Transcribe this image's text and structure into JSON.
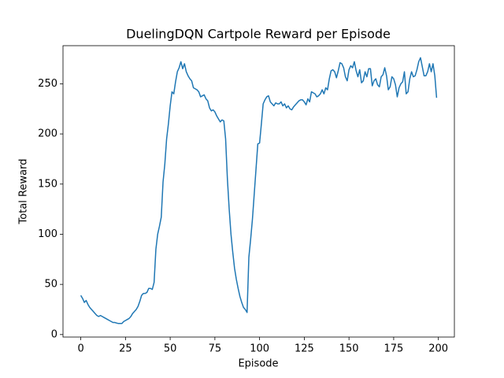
{
  "chart_data": {
    "type": "line",
    "title": "DuelingDQN Cartpole Reward per Episode",
    "x_label": "Episode",
    "y_label": "Total Reward",
    "x": [
      0,
      1,
      2,
      3,
      4,
      5,
      6,
      7,
      8,
      9,
      10,
      11,
      12,
      13,
      14,
      15,
      16,
      17,
      18,
      19,
      20,
      21,
      22,
      23,
      24,
      25,
      26,
      27,
      28,
      29,
      30,
      31,
      32,
      33,
      34,
      35,
      36,
      37,
      38,
      39,
      40,
      41,
      42,
      43,
      44,
      45,
      46,
      47,
      48,
      49,
      50,
      51,
      52,
      53,
      54,
      55,
      56,
      57,
      58,
      59,
      60,
      61,
      62,
      63,
      64,
      65,
      66,
      67,
      68,
      69,
      70,
      71,
      72,
      73,
      74,
      75,
      76,
      77,
      78,
      79,
      80,
      81,
      82,
      83,
      84,
      85,
      86,
      87,
      88,
      89,
      90,
      91,
      92,
      93,
      94,
      95,
      96,
      97,
      98,
      99,
      100,
      101,
      102,
      103,
      104,
      105,
      106,
      107,
      108,
      109,
      110,
      111,
      112,
      113,
      114,
      115,
      116,
      117,
      118,
      119,
      120,
      121,
      122,
      123,
      124,
      125,
      126,
      127,
      128,
      129,
      130,
      131,
      132,
      133,
      134,
      135,
      136,
      137,
      138,
      139,
      140,
      141,
      142,
      143,
      144,
      145,
      146,
      147,
      148,
      149,
      150,
      151,
      152,
      153,
      154,
      155,
      156,
      157,
      158,
      159,
      160,
      161,
      162,
      163,
      164,
      165,
      166,
      167,
      168,
      169,
      170,
      171,
      172,
      173,
      174,
      175,
      176,
      177,
      178,
      179,
      180,
      181,
      182,
      183,
      184,
      185,
      186,
      187,
      188,
      189,
      190,
      191,
      192,
      193,
      194,
      195,
      196,
      197,
      198,
      199
    ],
    "series": [
      {
        "color": "#1f77b4",
        "values": [
          39,
          36,
          32,
          34,
          30,
          27,
          25,
          23,
          21,
          19,
          18,
          19,
          18,
          17,
          16,
          15,
          14,
          13,
          12,
          12,
          11.5,
          11,
          11,
          11,
          13,
          14,
          15,
          16,
          18,
          21,
          23,
          25,
          28,
          33,
          39,
          41,
          41,
          42,
          46,
          46,
          45,
          52,
          85,
          100,
          108,
          117,
          152,
          170,
          195,
          210,
          228,
          242,
          240,
          252,
          262,
          266,
          272,
          265,
          270,
          262,
          258,
          255,
          253,
          246,
          245,
          244,
          242,
          237,
          238,
          239,
          235,
          233,
          226,
          223,
          224,
          222,
          218,
          215,
          212,
          214,
          213,
          195,
          155,
          125,
          100,
          82,
          66,
          55,
          46,
          38,
          32,
          27,
          25,
          22,
          77,
          95,
          115,
          140,
          165,
          190,
          191,
          210,
          230,
          234,
          237,
          238,
          232,
          230,
          228,
          231,
          230,
          230,
          232,
          228,
          230,
          226,
          228,
          225,
          224,
          227,
          229,
          231,
          233,
          234,
          234,
          232,
          229,
          235,
          232,
          242,
          241,
          240,
          237,
          238,
          240,
          244,
          240,
          246,
          244,
          255,
          263,
          264,
          262,
          256,
          263,
          271,
          270,
          266,
          257,
          253,
          264,
          268,
          266,
          272,
          263,
          257,
          264,
          251,
          253,
          262,
          257,
          265,
          265,
          248,
          253,
          255,
          249,
          247,
          257,
          259,
          266,
          258,
          244,
          247,
          257,
          255,
          249,
          237,
          246,
          250,
          252,
          262,
          240,
          242,
          255,
          262,
          257,
          258,
          264,
          272,
          276,
          267,
          258,
          258,
          262,
          270,
          262,
          270,
          258,
          236
        ]
      }
    ],
    "xlim": [
      -9.95,
      208.95
    ],
    "ylim": [
      -2.5,
      288
    ],
    "xticks": [
      0,
      25,
      50,
      75,
      100,
      125,
      150,
      175,
      200
    ],
    "yticks": [
      0,
      50,
      100,
      150,
      200,
      250
    ]
  }
}
